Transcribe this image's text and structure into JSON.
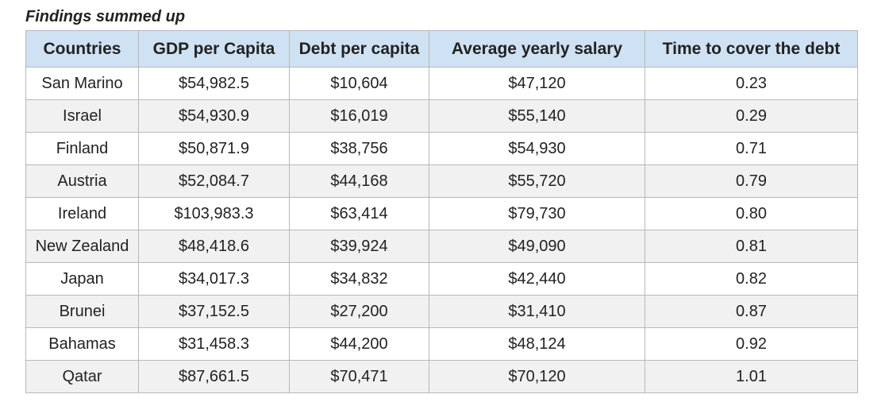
{
  "caption": "Findings summed up",
  "table": {
    "headers": [
      "Countries",
      "GDP per Capita",
      "Debt per capita",
      "Average yearly salary",
      "Time to cover the debt"
    ],
    "rows": [
      [
        "San Marino",
        "$54,982.5",
        "$10,604",
        "$47,120",
        "0.23"
      ],
      [
        "Israel",
        "$54,930.9",
        "$16,019",
        "$55,140",
        "0.29"
      ],
      [
        "Finland",
        "$50,871.9",
        "$38,756",
        "$54,930",
        "0.71"
      ],
      [
        "Austria",
        "$52,084.7",
        "$44,168",
        "$55,720",
        "0.79"
      ],
      [
        "Ireland",
        "$103,983.3",
        "$63,414",
        "$79,730",
        "0.80"
      ],
      [
        "New Zealand",
        "$48,418.6",
        "$39,924",
        "$49,090",
        "0.81"
      ],
      [
        "Japan",
        "$34,017.3",
        "$34,832",
        "$42,440",
        "0.82"
      ],
      [
        "Brunei",
        "$37,152.5",
        "$27,200",
        "$31,410",
        "0.87"
      ],
      [
        "Bahamas",
        "$31,458.3",
        "$44,200",
        "$48,124",
        "0.92"
      ],
      [
        "Qatar",
        "$87,661.5",
        "$70,471",
        "$70,120",
        "1.01"
      ]
    ]
  },
  "colors": {
    "header_bg": "#cfe2f3",
    "stripe_bg": "#f1f1f1",
    "border": "#b8b8b8",
    "text": "#222222"
  }
}
